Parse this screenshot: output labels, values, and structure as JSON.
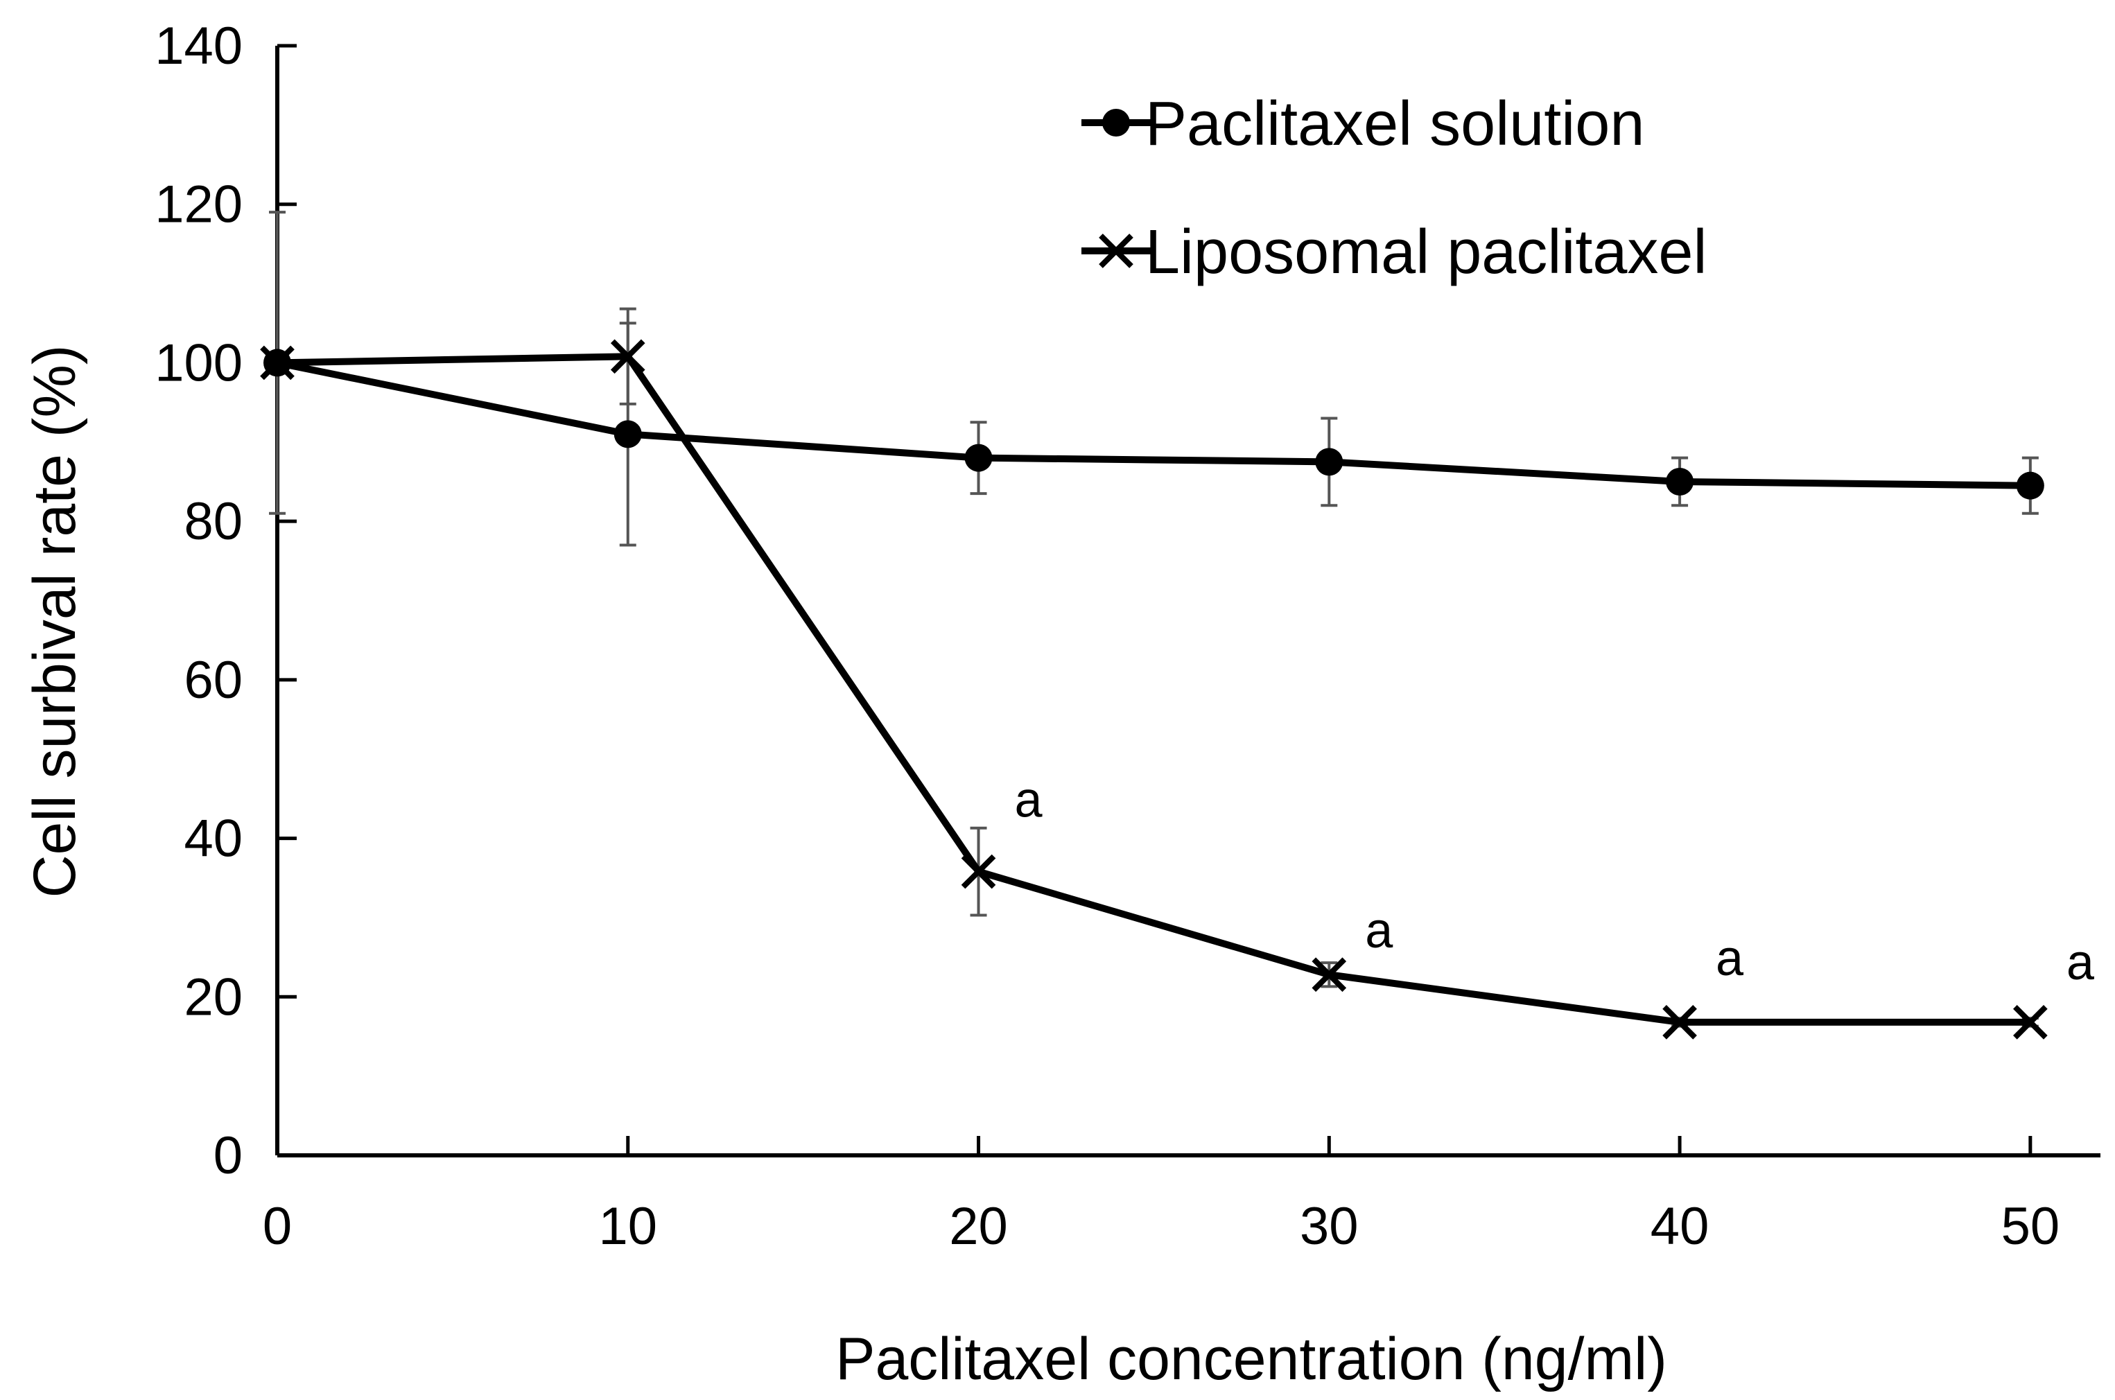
{
  "chart_data": {
    "type": "line",
    "title": "",
    "xlabel": "Paclitaxel concentration (ng/ml)",
    "ylabel": "Cell surbival rate (%)",
    "x": [
      0,
      10,
      20,
      30,
      40,
      50
    ],
    "xlim": [
      0,
      52
    ],
    "ylim": [
      0,
      140
    ],
    "xticks": [
      "0",
      "10",
      "20",
      "30",
      "40",
      "50"
    ],
    "yticks": [
      "0",
      "20",
      "40",
      "60",
      "80",
      "100",
      "120",
      "140"
    ],
    "grid": false,
    "legend_position": "top-right",
    "series": [
      {
        "name": "Paclitaxel solution",
        "marker": "circle",
        "values": [
          100,
          91,
          88,
          87.5,
          85,
          84.5
        ],
        "error": [
          19,
          14,
          4.5,
          5.5,
          3,
          3.5
        ]
      },
      {
        "name": "Liposomal paclitaxel",
        "marker": "x",
        "values": [
          100,
          100.8,
          35.8,
          22.8,
          16.8,
          16.8
        ],
        "error": [
          0,
          6,
          5.5,
          1.5,
          0.5,
          0.5
        ]
      }
    ],
    "annotations": [
      {
        "text": "a",
        "x": 20,
        "y": 45
      },
      {
        "text": "a",
        "x": 30,
        "y": 28.5
      },
      {
        "text": "a",
        "x": 40,
        "y": 25
      },
      {
        "text": "a",
        "x": 50,
        "y": 24.5
      }
    ],
    "colors": {
      "line": "#000000",
      "errorbar": "#555555"
    }
  }
}
